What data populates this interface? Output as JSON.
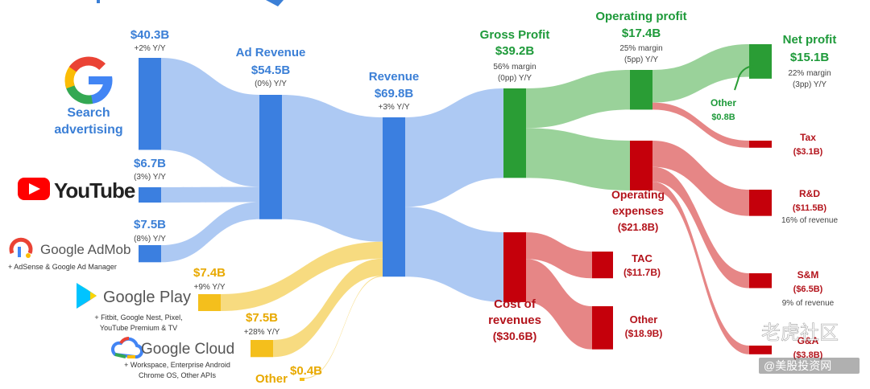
{
  "chart_data": {
    "type": "sankey",
    "title": "",
    "units": "$B",
    "nodes": [
      {
        "id": "search",
        "label": "Search advertising",
        "value": 40.3,
        "value_label": "$40.3B",
        "yoy": "+2% Y/Y"
      },
      {
        "id": "youtube",
        "label": "YouTube",
        "value": 6.7,
        "value_label": "$6.7B",
        "yoy": "(3%) Y/Y"
      },
      {
        "id": "admob",
        "label": "Google AdMob",
        "sublabel": "+ AdSense & Google Ad Manager",
        "value": 7.5,
        "value_label": "$7.5B",
        "yoy": "(8%) Y/Y"
      },
      {
        "id": "play",
        "label": "Google Play",
        "sublabel": "+ Fitbit, Google Nest, Pixel, YouTube Premium & TV",
        "value": 7.4,
        "value_label": "$7.4B",
        "yoy": "+9% Y/Y"
      },
      {
        "id": "cloud",
        "label": "Google Cloud",
        "sublabel": "+ Workspace, Enterprise Android Chrome OS, Other APIs",
        "value": 7.5,
        "value_label": "$7.5B",
        "yoy": "+28% Y/Y"
      },
      {
        "id": "other_rev",
        "label": "Other",
        "value": 0.4,
        "value_label": "$0.4B"
      },
      {
        "id": "ad_revenue",
        "label": "Ad Revenue",
        "value": 54.5,
        "value_label": "$54.5B",
        "yoy": "(0%) Y/Y"
      },
      {
        "id": "revenue",
        "label": "Revenue",
        "value": 69.8,
        "value_label": "$69.8B",
        "yoy": "+3% Y/Y"
      },
      {
        "id": "gross_profit",
        "label": "Gross Profit",
        "value": 39.2,
        "value_label": "$39.2B",
        "margin": "56% margin",
        "yoy": "(0pp) Y/Y"
      },
      {
        "id": "cost_of_revenues",
        "label": "Cost of revenues",
        "value": 30.6,
        "value_label": "($30.6B)"
      },
      {
        "id": "operating_profit",
        "label": "Operating profit",
        "value": 17.4,
        "value_label": "$17.4B",
        "margin": "25% margin",
        "yoy": "(5pp) Y/Y"
      },
      {
        "id": "operating_expenses",
        "label": "Operating expenses",
        "value": 21.8,
        "value_label": "($21.8B)"
      },
      {
        "id": "tac",
        "label": "TAC",
        "value": 11.7,
        "value_label": "($11.7B)"
      },
      {
        "id": "other_cost",
        "label": "Other",
        "value": 18.9,
        "value_label": "($18.9B)"
      },
      {
        "id": "net_profit",
        "label": "Net profit",
        "value": 15.1,
        "value_label": "$15.1B",
        "margin": "22% margin",
        "yoy": "(3pp) Y/Y"
      },
      {
        "id": "other_income",
        "label": "Other",
        "value": 0.8,
        "value_label": "$0.8B"
      },
      {
        "id": "tax",
        "label": "Tax",
        "value": 3.1,
        "value_label": "($3.1B)"
      },
      {
        "id": "rnd",
        "label": "R&D",
        "value": 11.5,
        "value_label": "($11.5B)",
        "note": "16% of revenue"
      },
      {
        "id": "snm",
        "label": "S&M",
        "value": 6.5,
        "value_label": "($6.5B)",
        "note": "9% of revenue"
      },
      {
        "id": "gna",
        "label": "G&A",
        "value": 3.8,
        "value_label": "($3.8B)"
      }
    ],
    "links": [
      {
        "source": "search",
        "target": "ad_revenue",
        "value": 40.3
      },
      {
        "source": "youtube",
        "target": "ad_revenue",
        "value": 6.7
      },
      {
        "source": "admob",
        "target": "ad_revenue",
        "value": 7.5
      },
      {
        "source": "ad_revenue",
        "target": "revenue",
        "value": 54.5
      },
      {
        "source": "play",
        "target": "revenue",
        "value": 7.4
      },
      {
        "source": "cloud",
        "target": "revenue",
        "value": 7.5
      },
      {
        "source": "other_rev",
        "target": "revenue",
        "value": 0.4
      },
      {
        "source": "revenue",
        "target": "gross_profit",
        "value": 39.2
      },
      {
        "source": "revenue",
        "target": "cost_of_revenues",
        "value": 30.6
      },
      {
        "source": "gross_profit",
        "target": "operating_profit",
        "value": 17.4
      },
      {
        "source": "gross_profit",
        "target": "operating_expenses",
        "value": 21.8
      },
      {
        "source": "cost_of_revenues",
        "target": "tac",
        "value": 11.7
      },
      {
        "source": "cost_of_revenues",
        "target": "other_cost",
        "value": 18.9
      },
      {
        "source": "operating_profit",
        "target": "net_profit",
        "value": 14.3
      },
      {
        "source": "other_income",
        "target": "net_profit",
        "value": 0.8
      },
      {
        "source": "operating_profit",
        "target": "tax",
        "value": 3.1
      },
      {
        "source": "operating_expenses",
        "target": "rnd",
        "value": 11.5
      },
      {
        "source": "operating_expenses",
        "target": "snm",
        "value": 6.5
      },
      {
        "source": "operating_expenses",
        "target": "gna",
        "value": 3.8
      }
    ]
  },
  "logos": {
    "search_line1": "Search",
    "search_line2": "advertising",
    "youtube": "YouTube",
    "admob": "Google AdMob",
    "admob_sub": "+ AdSense & Google Ad Manager",
    "play": "Google Play",
    "play_sub1": "+ Fitbit, Google Nest, Pixel,",
    "play_sub2": "YouTube Premium & TV",
    "cloud": "Google Cloud",
    "cloud_sub1": "+ Workspace, Enterprise Android",
    "cloud_sub2": "Chrome OS, Other APIs"
  },
  "label_lines": {
    "opex_line1": "Operating",
    "opex_line2": "expenses",
    "cor_line1": "Cost of",
    "cor_line2": "revenues"
  },
  "watermark": {
    "text": "老虎社区",
    "subtext": "@美股投资网"
  },
  "colors": {
    "blue_node": "#3b7fe0",
    "blue_flow": "#a9c6f2",
    "yellow_node": "#f4bf1c",
    "yellow_flow": "#f7d979",
    "green_node": "#2a9d35",
    "green_flow": "#95d095",
    "red_node": "#c5000b",
    "red_flow": "#e5807f"
  }
}
